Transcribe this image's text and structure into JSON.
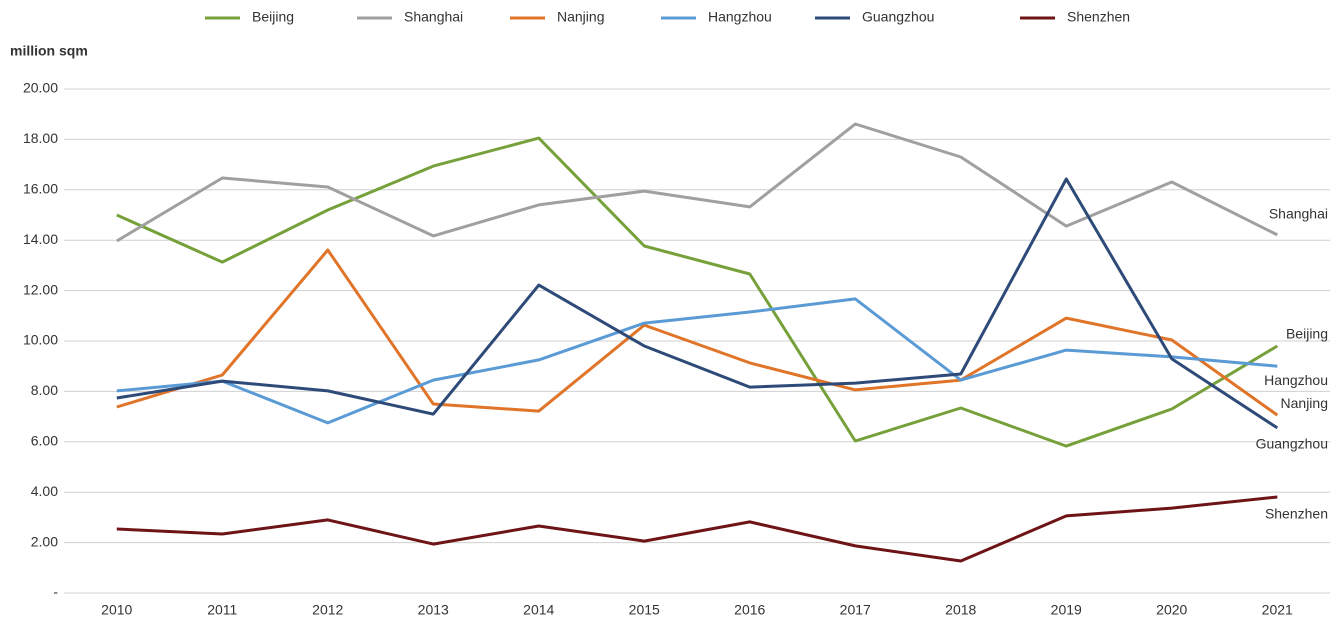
{
  "chart_data": {
    "type": "line",
    "y_label": "million sqm",
    "categories": [
      "2010",
      "2011",
      "2012",
      "2013",
      "2014",
      "2015",
      "2016",
      "2017",
      "2018",
      "2019",
      "2020",
      "2021"
    ],
    "series": [
      {
        "name": "Beijing",
        "color": "#76a13a",
        "values": [
          15.0,
          13.13,
          15.2,
          16.94,
          18.05,
          13.77,
          12.66,
          6.03,
          7.34,
          5.83,
          7.3,
          9.8
        ]
      },
      {
        "name": "Shanghai",
        "color": "#a0a0a0",
        "values": [
          13.97,
          16.47,
          16.11,
          14.17,
          15.4,
          15.95,
          15.32,
          18.61,
          17.3,
          14.56,
          16.31,
          14.21
        ]
      },
      {
        "name": "Nanjing",
        "color": "#e07428",
        "values": [
          7.38,
          8.65,
          13.61,
          7.5,
          7.22,
          10.63,
          9.13,
          8.06,
          8.45,
          10.91,
          10.04,
          7.06
        ]
      },
      {
        "name": "Hangzhou",
        "color": "#5b9bd5",
        "values": [
          8.02,
          8.41,
          6.75,
          8.45,
          9.25,
          10.71,
          11.15,
          11.67,
          8.45,
          9.64,
          9.37,
          9.0
        ]
      },
      {
        "name": "Guangzhou",
        "color": "#2e4a78",
        "values": [
          7.74,
          8.41,
          8.02,
          7.1,
          12.22,
          9.8,
          8.17,
          8.33,
          8.69,
          16.43,
          9.29,
          6.55
        ]
      },
      {
        "name": "Shenzhen",
        "color": "#6e1416",
        "values": [
          2.54,
          2.34,
          2.9,
          1.94,
          2.66,
          2.06,
          2.82,
          1.87,
          1.27,
          3.06,
          3.37,
          3.81
        ]
      }
    ],
    "ylim": [
      0,
      20
    ],
    "yticks": [
      {
        "value": 0,
        "label": "-"
      },
      {
        "value": 2,
        "label": "2.00"
      },
      {
        "value": 4,
        "label": "4.00"
      },
      {
        "value": 6,
        "label": "6.00"
      },
      {
        "value": 8,
        "label": "8.00"
      },
      {
        "value": 10,
        "label": "10.00"
      },
      {
        "value": 12,
        "label": "12.00"
      },
      {
        "value": 14,
        "label": "14.00"
      },
      {
        "value": 16,
        "label": "16.00"
      },
      {
        "value": 18,
        "label": "18.00"
      },
      {
        "value": 20,
        "label": "20.00"
      }
    ],
    "grid": true,
    "legend": "top"
  }
}
